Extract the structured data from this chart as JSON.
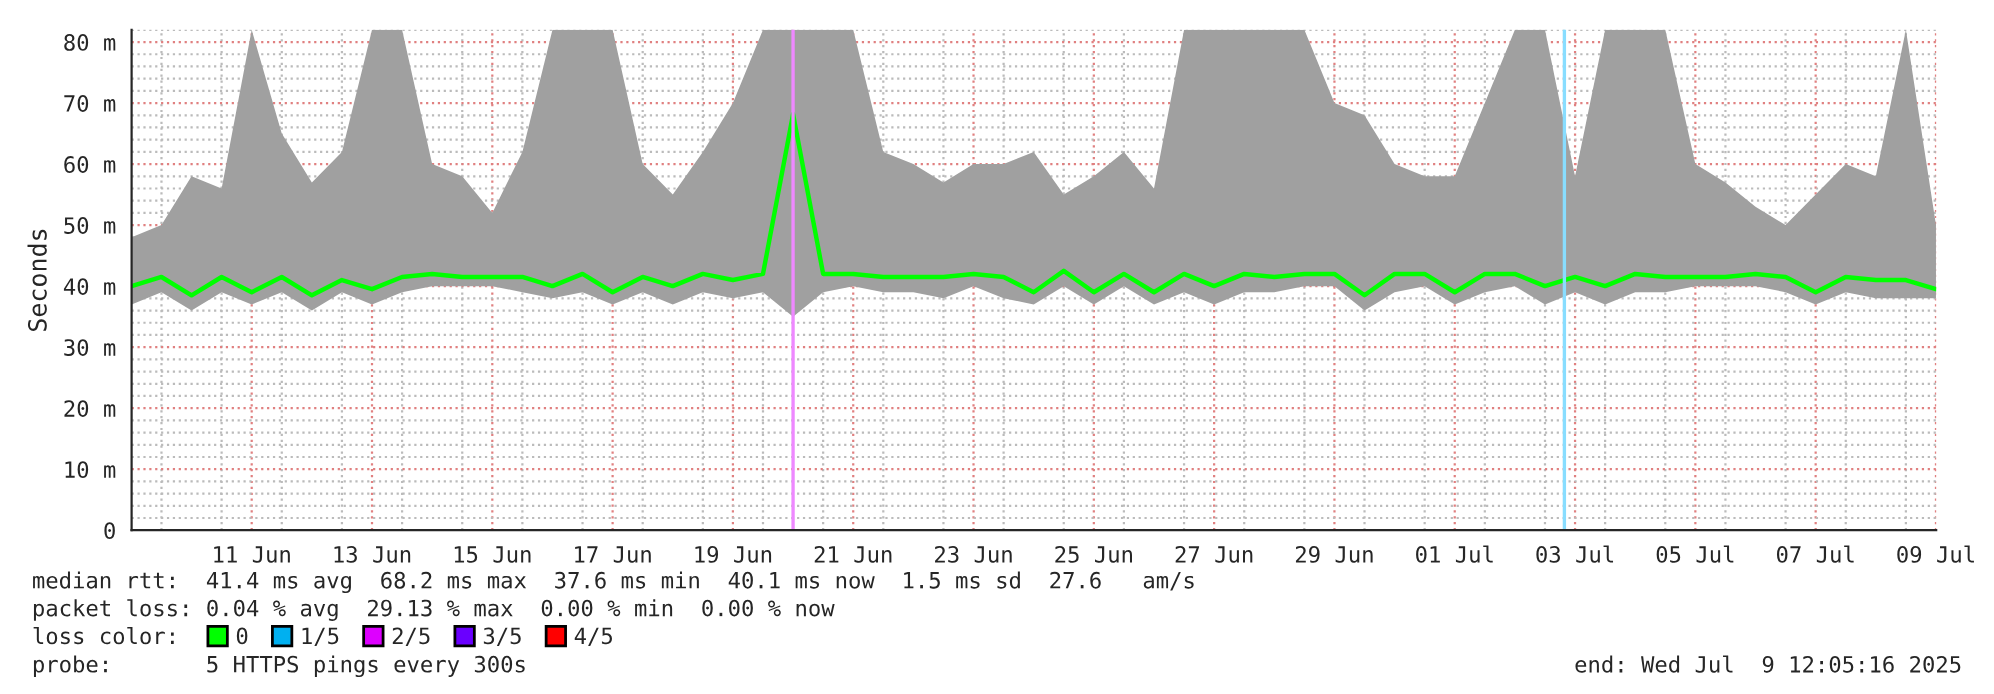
{
  "chart_data": {
    "type": "line",
    "ylabel": "Seconds",
    "xlim": [
      "2025-06-09T12:05",
      "2025-07-09T12:05"
    ],
    "ylim": [
      0,
      82
    ],
    "xticks": [
      {
        "value": "2025-06-11T12:00",
        "label": "11 Jun"
      },
      {
        "value": "2025-06-13T12:00",
        "label": "13 Jun"
      },
      {
        "value": "2025-06-15T12:00",
        "label": "15 Jun"
      },
      {
        "value": "2025-06-17T12:00",
        "label": "17 Jun"
      },
      {
        "value": "2025-06-19T12:00",
        "label": "19 Jun"
      },
      {
        "value": "2025-06-21T12:00",
        "label": "21 Jun"
      },
      {
        "value": "2025-06-23T12:00",
        "label": "23 Jun"
      },
      {
        "value": "2025-06-25T12:00",
        "label": "25 Jun"
      },
      {
        "value": "2025-06-27T12:00",
        "label": "27 Jun"
      },
      {
        "value": "2025-06-29T12:00",
        "label": "29 Jun"
      },
      {
        "value": "2025-07-01T12:00",
        "label": "01 Jul"
      },
      {
        "value": "2025-07-03T12:00",
        "label": "03 Jul"
      },
      {
        "value": "2025-07-05T12:00",
        "label": "05 Jul"
      },
      {
        "value": "2025-07-07T12:00",
        "label": "07 Jul"
      },
      {
        "value": "2025-07-09T12:00",
        "label": "09 Jul"
      }
    ],
    "yticks": [
      0,
      {
        "value": 10,
        "label": "10 m"
      },
      {
        "value": 20,
        "label": "20 m"
      },
      {
        "value": 30,
        "label": "30 m"
      },
      {
        "value": 40,
        "label": "40 m"
      },
      {
        "value": 50,
        "label": "50 m"
      },
      {
        "value": 60,
        "label": "60 m"
      },
      {
        "value": 70,
        "label": "70 m"
      },
      {
        "value": 80,
        "label": "80 m"
      }
    ],
    "grid": true,
    "legend": "bottom",
    "legend_title": "loss color:",
    "x": [
      "2025-06-09T12:05",
      "2025-06-10T00:00",
      "2025-06-10T12:00",
      "2025-06-11T00:00",
      "2025-06-11T12:00",
      "2025-06-12T00:00",
      "2025-06-12T12:00",
      "2025-06-13T00:00",
      "2025-06-13T12:00",
      "2025-06-14T00:00",
      "2025-06-14T12:00",
      "2025-06-15T00:00",
      "2025-06-15T12:00",
      "2025-06-16T00:00",
      "2025-06-16T12:00",
      "2025-06-17T00:00",
      "2025-06-17T12:00",
      "2025-06-18T00:00",
      "2025-06-18T12:00",
      "2025-06-19T00:00",
      "2025-06-19T12:00",
      "2025-06-20T00:00",
      "2025-06-20T12:00",
      "2025-06-21T00:00",
      "2025-06-21T12:00",
      "2025-06-22T00:00",
      "2025-06-22T12:00",
      "2025-06-23T00:00",
      "2025-06-23T12:00",
      "2025-06-24T00:00",
      "2025-06-24T12:00",
      "2025-06-25T00:00",
      "2025-06-25T12:00",
      "2025-06-26T00:00",
      "2025-06-26T12:00",
      "2025-06-27T00:00",
      "2025-06-27T12:00",
      "2025-06-28T00:00",
      "2025-06-28T12:00",
      "2025-06-29T00:00",
      "2025-06-29T12:00",
      "2025-06-30T00:00",
      "2025-06-30T12:00",
      "2025-07-01T00:00",
      "2025-07-01T12:00",
      "2025-07-02T00:00",
      "2025-07-02T12:00",
      "2025-07-03T00:00",
      "2025-07-03T12:00",
      "2025-07-04T00:00",
      "2025-07-04T12:00",
      "2025-07-05T00:00",
      "2025-07-05T12:00",
      "2025-07-06T00:00",
      "2025-07-06T12:00",
      "2025-07-07T00:00",
      "2025-07-07T12:00",
      "2025-07-08T00:00",
      "2025-07-08T12:00",
      "2025-07-09T00:00",
      "2025-07-09T12:00"
    ],
    "series": [
      {
        "name": "0",
        "color": "#00ff00",
        "values": [
          40,
          41.5,
          38.5,
          41.5,
          39,
          41.5,
          38.5,
          41,
          39.5,
          41.5,
          42,
          41.5,
          41.5,
          41.5,
          40,
          42,
          39,
          41.5,
          40,
          42,
          41,
          42,
          68.2,
          42,
          42,
          41.5,
          41.5,
          41.5,
          42,
          41.5,
          39,
          42.5,
          39,
          42,
          39,
          42,
          40,
          42,
          41.5,
          42,
          42,
          38.5,
          42,
          42,
          39,
          42,
          42,
          40,
          41.5,
          40,
          42,
          41.5,
          41.5,
          41.5,
          42,
          41.5,
          39,
          41.5,
          41,
          41,
          39.5
        ],
        "lower": [
          37,
          39,
          36,
          39,
          37,
          39,
          36,
          39,
          37,
          39,
          40,
          40,
          40,
          39,
          38,
          39,
          37,
          39,
          37,
          39,
          38,
          39,
          35,
          39,
          40,
          39,
          39,
          38,
          40,
          38,
          37,
          40,
          37,
          40,
          37,
          39,
          37,
          39,
          39,
          40,
          40,
          36,
          39,
          40,
          37,
          39,
          40,
          37,
          39,
          37,
          39,
          39,
          40,
          40,
          40,
          39,
          37,
          39,
          38,
          38,
          38
        ],
        "upper": [
          48,
          50,
          58,
          56,
          82,
          65,
          57,
          62,
          82,
          82,
          60,
          58,
          52,
          62,
          82,
          82,
          82,
          60,
          55,
          62,
          70,
          82,
          82,
          82,
          82,
          62,
          60,
          57,
          60,
          60,
          62,
          55,
          58,
          62,
          56,
          82,
          82,
          82,
          82,
          82,
          70,
          68,
          60,
          58,
          58,
          70,
          82,
          82,
          58,
          82,
          82,
          82,
          60,
          57,
          53,
          50,
          55,
          60,
          58,
          82,
          50
        ]
      },
      {
        "name": "1/5",
        "color": "#00b0f0",
        "values": [
          null,
          null,
          null,
          null,
          null,
          null,
          null,
          null,
          null,
          null,
          null,
          null,
          null,
          null,
          null,
          null,
          null,
          null,
          null,
          null,
          null,
          null,
          null,
          null,
          null,
          null,
          null,
          null,
          null,
          null,
          null,
          null,
          null,
          null,
          null,
          null,
          null,
          null,
          null,
          null,
          null,
          null,
          null,
          null,
          null,
          null,
          null,
          null,
          null,
          null,
          null,
          null,
          null,
          null,
          null,
          null,
          null,
          null,
          null,
          null,
          null
        ]
      },
      {
        "name": "2/5",
        "color": "#dd00ff",
        "values": [
          null,
          null,
          null,
          null,
          null,
          null,
          null,
          null,
          null,
          null,
          null,
          null,
          null,
          null,
          null,
          null,
          null,
          null,
          null,
          null,
          null,
          null,
          null,
          null,
          null,
          null,
          null,
          null,
          null,
          null,
          null,
          null,
          null,
          null,
          null,
          null,
          null,
          null,
          null,
          null,
          null,
          null,
          null,
          null,
          null,
          null,
          null,
          null,
          null,
          null,
          null,
          null,
          null,
          null,
          null,
          null,
          null,
          null,
          null,
          null,
          null
        ]
      },
      {
        "name": "3/5",
        "color": "#6a00ff",
        "values": [
          null,
          null,
          null,
          null,
          null,
          null,
          null,
          null,
          null,
          null,
          null,
          null,
          null,
          null,
          null,
          null,
          null,
          null,
          null,
          null,
          null,
          null,
          null,
          null,
          null,
          null,
          null,
          null,
          null,
          null,
          null,
          null,
          null,
          null,
          null,
          null,
          null,
          null,
          null,
          null,
          null,
          null,
          null,
          null,
          null,
          null,
          null,
          null,
          null,
          null,
          null,
          null,
          null,
          null,
          null,
          null,
          null,
          null,
          null,
          null,
          null
        ]
      },
      {
        "name": "4/5",
        "color": "#ff0000",
        "values": [
          null,
          null,
          null,
          null,
          null,
          null,
          null,
          null,
          null,
          null,
          null,
          null,
          null,
          null,
          null,
          null,
          null,
          null,
          null,
          null,
          null,
          null,
          null,
          null,
          null,
          null,
          null,
          null,
          null,
          null,
          null,
          null,
          null,
          null,
          null,
          null,
          null,
          null,
          null,
          null,
          null,
          null,
          null,
          null,
          null,
          null,
          null,
          null,
          null,
          null,
          null,
          null,
          null,
          null,
          null,
          null,
          null,
          null,
          null,
          null,
          null
        ]
      }
    ],
    "ref_lines": [
      {
        "axis": "x",
        "value": "2025-06-20T12:00",
        "color": "#ee88ff"
      },
      {
        "axis": "x",
        "value": "2025-07-03T07:45",
        "color": "#88ddff"
      }
    ],
    "annotations": [
      "median rtt:  41.4 ms avg  68.2 ms max  37.6 ms min  40.1 ms now  1.5 ms sd  27.6   am/s",
      "packet loss: 0.04 % avg  29.13 % max  0.00 % min  0.00 % now",
      "probe:       5 HTTPS pings every 300s",
      "end: Wed Jul  9 12:05:16 2025"
    ]
  }
}
